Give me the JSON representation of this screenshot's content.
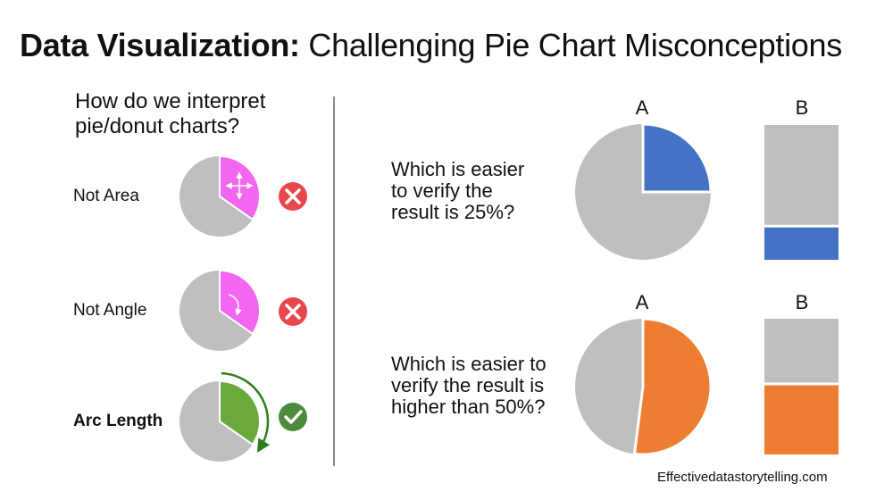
{
  "title": {
    "bold": "Data Visualization:",
    "rest": " Challenging Pie Chart Misconceptions"
  },
  "left_panel": {
    "question_line1": "How do we interpret",
    "question_line2": "pie/donut charts?",
    "rows": [
      {
        "label": "Not Area",
        "verdict": "incorrect",
        "highlight_color": "#f266f0",
        "icon": "move-arrows-icon"
      },
      {
        "label": "Not Angle",
        "verdict": "incorrect",
        "highlight_color": "#f266f0",
        "icon": "angle-arrow-icon"
      },
      {
        "label": "Arc Length",
        "verdict": "correct",
        "highlight_color": "#6aaa3c",
        "icon": "arc-arrow-icon"
      }
    ]
  },
  "right_panel": {
    "col_a": "A",
    "col_b": "B",
    "q1": {
      "line1": "Which is easier",
      "line2": "to verify the",
      "line3": "result is 25%?",
      "value_fraction": 0.25,
      "color": "#4472c4"
    },
    "q2": {
      "line1": "Which is easier to",
      "line2": "verify the result is",
      "line3": "higher than 50%?",
      "value_fraction": 0.52,
      "color": "#ed7d31"
    }
  },
  "footer": "Effectivedatastorytelling.com",
  "colors": {
    "pie_base": "#bfbfbf",
    "incorrect": "#e8474e",
    "correct": "#4d8a3c",
    "divider": "#8a8a8a"
  }
}
